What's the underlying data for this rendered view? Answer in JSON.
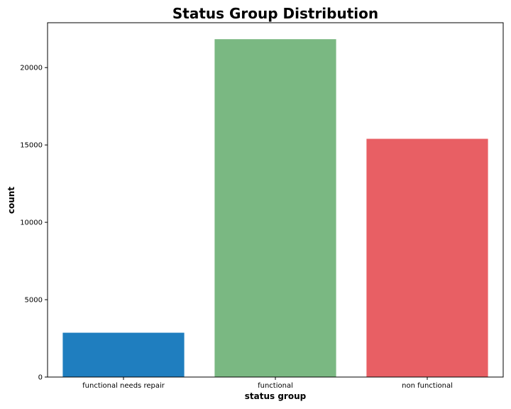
{
  "chart_data": {
    "type": "bar",
    "title": "Status Group Distribution",
    "xlabel": "status group",
    "ylabel": "count",
    "categories": [
      "functional needs repair",
      "functional",
      "non functional"
    ],
    "values": [
      2865,
      21836,
      15397
    ],
    "colors": [
      "#1f7ebf",
      "#7ab882",
      "#e85f64"
    ],
    "ylim": [
      0,
      22900
    ],
    "yticks": [
      0,
      5000,
      10000,
      15000,
      20000
    ],
    "ytick_labels": [
      "0",
      "5000",
      "10000",
      "15000",
      "20000"
    ],
    "grid": false,
    "legend": "none"
  }
}
